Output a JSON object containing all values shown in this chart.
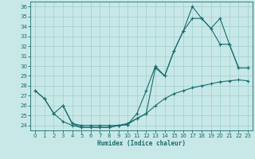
{
  "xlabel": "Humidex (Indice chaleur)",
  "bg_color": "#c8e8e8",
  "line_color": "#1a6b6b",
  "grid_color": "#9ecece",
  "xlim": [
    -0.5,
    23.5
  ],
  "ylim": [
    23.5,
    36.5
  ],
  "xticks": [
    0,
    1,
    2,
    3,
    4,
    5,
    6,
    7,
    8,
    9,
    10,
    11,
    12,
    13,
    14,
    15,
    16,
    17,
    18,
    19,
    20,
    21,
    22,
    23
  ],
  "yticks": [
    24,
    25,
    26,
    27,
    28,
    29,
    30,
    31,
    32,
    33,
    34,
    35,
    36
  ],
  "line1_x": [
    0,
    1,
    2,
    3,
    4,
    5,
    6,
    7,
    8,
    9,
    10,
    11,
    12,
    13,
    14,
    15,
    16,
    17,
    18,
    19,
    20,
    21,
    22,
    23
  ],
  "line1_y": [
    27.5,
    26.7,
    25.2,
    26.0,
    24.2,
    23.8,
    23.8,
    23.8,
    23.8,
    24.0,
    24.1,
    25.2,
    27.5,
    30.0,
    29.0,
    31.5,
    33.5,
    36.0,
    34.8,
    33.8,
    32.2,
    32.2,
    29.8,
    29.8
  ],
  "line2_x": [
    0,
    1,
    2,
    3,
    4,
    5,
    6,
    7,
    8,
    9,
    10,
    11,
    12,
    13,
    14,
    15,
    16,
    17,
    18,
    19,
    20,
    21,
    22,
    23
  ],
  "line2_y": [
    27.5,
    26.7,
    25.2,
    24.4,
    24.0,
    23.8,
    23.8,
    23.8,
    23.8,
    24.0,
    24.1,
    24.7,
    25.2,
    26.0,
    26.7,
    27.2,
    27.5,
    27.8,
    28.0,
    28.2,
    28.4,
    28.5,
    28.6,
    28.5
  ],
  "line3_x": [
    3,
    4,
    5,
    6,
    7,
    8,
    9,
    10,
    11,
    12,
    13,
    14,
    15,
    16,
    17,
    18,
    19,
    20,
    21,
    22,
    23
  ],
  "line3_y": [
    26.0,
    24.2,
    24.0,
    24.0,
    24.0,
    24.0,
    24.0,
    24.2,
    24.7,
    25.2,
    29.8,
    29.0,
    31.5,
    33.5,
    34.8,
    34.8,
    33.8,
    34.8,
    32.2,
    29.8,
    29.8
  ]
}
